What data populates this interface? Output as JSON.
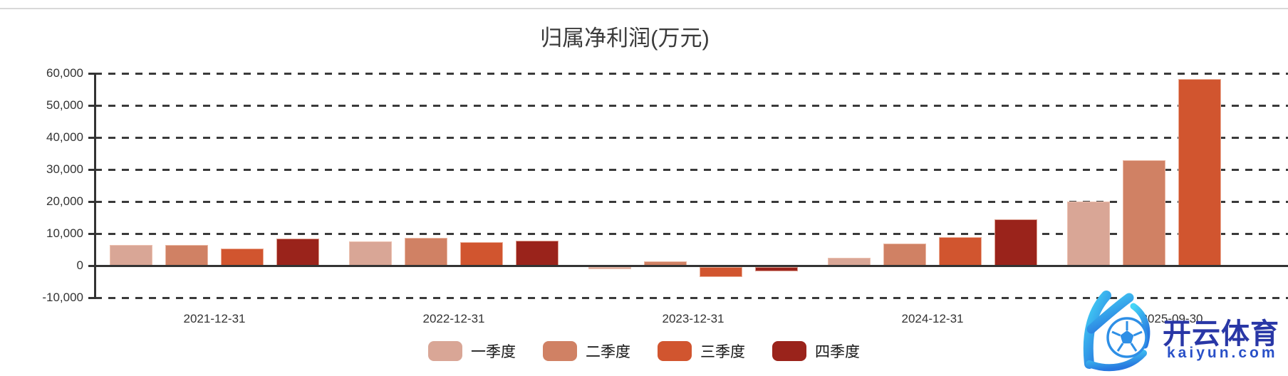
{
  "title": "归属净利润(万元)",
  "watermark": {
    "brand_cn": "开云体育",
    "brand_url": "kaiyun.com",
    "logo_gradient_top": "#45d6f7",
    "logo_gradient_bottom": "#2878df",
    "ball_color": "#2e8fe6"
  },
  "chart_data": {
    "type": "bar",
    "title": "归属净利润(万元)",
    "unit": "万元",
    "categories": [
      "2021-12-31",
      "2022-12-31",
      "2023-12-31",
      "2024-12-31",
      "2025-09-30"
    ],
    "series": [
      {
        "name": "一季度",
        "color": "#D9A696",
        "values": [
          6500,
          7500,
          -600,
          2500,
          20000
        ]
      },
      {
        "name": "二季度",
        "color": "#D08164",
        "values": [
          6500,
          8700,
          1300,
          6800,
          33000
        ]
      },
      {
        "name": "三季度",
        "color": "#D1552F",
        "values": [
          5400,
          7400,
          -3100,
          8900,
          58300
        ]
      },
      {
        "name": "四季度",
        "color": "#9A231B",
        "values": [
          8400,
          7800,
          -1300,
          14400,
          null
        ]
      }
    ],
    "ylim": [
      -10000,
      60000
    ],
    "y_ticks": [
      60000,
      50000,
      40000,
      30000,
      20000,
      10000,
      0,
      -10000
    ],
    "y_tick_labels": [
      "60,000",
      "50,000",
      "40,000",
      "30,000",
      "20,000",
      "10,000",
      "0",
      "-10,000"
    ],
    "grid": "dashed",
    "legend_position": "bottom",
    "xlabel": "",
    "ylabel": ""
  }
}
